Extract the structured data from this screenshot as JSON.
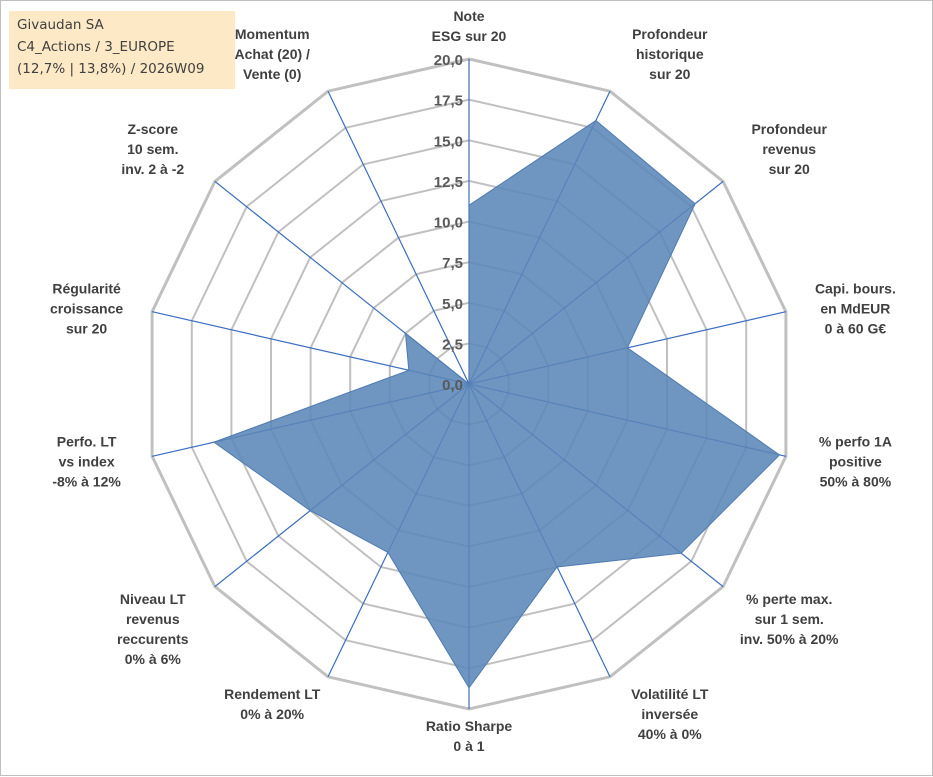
{
  "info_box": {
    "line1": "Givaudan SA",
    "line2": "C4_Actions / 3_EUROPE",
    "line3": "(12,7% | 13,8%) / 2026W09"
  },
  "colors": {
    "fill": "#5b86b8",
    "fill_stroke": "#4f7bb0",
    "spoke": "#3c6dbf",
    "ring": "#c0c0c0",
    "text": "#404040",
    "info_bg": "#fde9c5"
  },
  "chart_data": {
    "type": "radar",
    "title": "",
    "range": [
      0,
      20
    ],
    "ticks": [
      "0,0",
      "2,5",
      "5,0",
      "7,5",
      "10,0",
      "12,5",
      "15,0",
      "17,5",
      "20,0"
    ],
    "tick_values": [
      0,
      2.5,
      5,
      7.5,
      10,
      12.5,
      15,
      17.5,
      20
    ],
    "axes": [
      {
        "label": [
          "Note",
          "ESG sur 20"
        ],
        "value": 11.0
      },
      {
        "label": [
          "Profondeur",
          "historique",
          "sur 20"
        ],
        "value": 18.0
      },
      {
        "label": [
          "Profondeur",
          "revenus",
          "sur 20"
        ],
        "value": 17.8
      },
      {
        "label": [
          "Capi. bours.",
          "en MdEUR",
          "0 à 60 G€"
        ],
        "value": 10.0
      },
      {
        "label": [
          "% perfo 1A",
          "positive",
          "50% à 80%"
        ],
        "value": 19.6
      },
      {
        "label": [
          "% perte max.",
          "sur 1 sem.",
          "inv. 50% à 20%"
        ],
        "value": 16.7
      },
      {
        "label": [
          "Volatilité LT",
          "inversée",
          "40% à 0%"
        ],
        "value": 12.5
      },
      {
        "label": [
          "Ratio Sharpe",
          "0 à 1"
        ],
        "value": 18.7
      },
      {
        "label": [
          "Rendement LT",
          "0% à 20%"
        ],
        "value": 11.5
      },
      {
        "label": [
          "Niveau LT",
          "revenus",
          "reccurents",
          "0% à 6%"
        ],
        "value": 12.5
      },
      {
        "label": [
          "Perfo. LT",
          "vs index",
          "-8% à 12%"
        ],
        "value": 16.1
      },
      {
        "label": [
          "Régularité",
          "croissance",
          "sur 20"
        ],
        "value": 3.8
      },
      {
        "label": [
          "Z-score",
          "10 sem.",
          "inv. 2 à -2"
        ],
        "value": 5.0
      },
      {
        "label": [
          "Momentum",
          "Achat (20) /",
          "Vente (0)"
        ],
        "value": 0.0
      }
    ]
  }
}
